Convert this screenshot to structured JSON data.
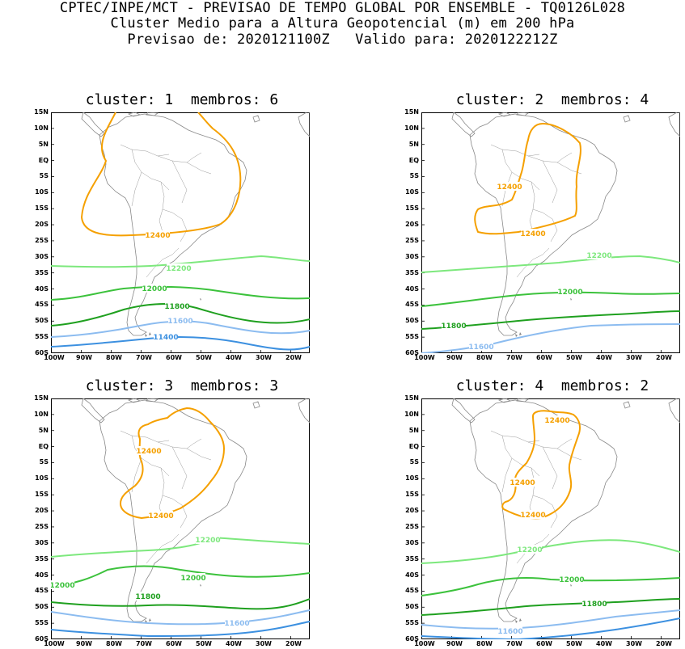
{
  "header": {
    "line1": "CPTEC/INPE/MCT - PREVISAO DE TEMPO GLOBAL POR ENSEMBLE - TQ0126L028",
    "line2": "Cluster Medio para a Altura Geopotencial (m) em 200 hPa",
    "line3": "Previsao de: 2020121100Z   Valido para: 2020122212Z"
  },
  "axes": {
    "lat_labels": [
      "15N",
      "10N",
      "5N",
      "EQ",
      "5S",
      "10S",
      "15S",
      "20S",
      "25S",
      "30S",
      "35S",
      "40S",
      "45S",
      "50S",
      "55S",
      "60S"
    ],
    "lon_labels": [
      "100W",
      "90W",
      "80W",
      "70W",
      "60W",
      "50W",
      "40W",
      "30W",
      "20W"
    ]
  },
  "colors": {
    "c12400": "#f5a000",
    "c12200": "#7de87d",
    "c12000": "#3cc23c",
    "c11800": "#1fa01f",
    "c11600": "#8cbcf0",
    "c11400": "#3c90e0",
    "land": "#888888"
  },
  "panels": [
    {
      "title": "cluster: 1  membros: 6",
      "labels": [
        "12400",
        "12200",
        "12000",
        "11800",
        "11600",
        "11400"
      ]
    },
    {
      "title": "cluster: 2  membros: 4",
      "labels": [
        "12400",
        "12400",
        "12200",
        "12000",
        "11800",
        "11600"
      ]
    },
    {
      "title": "cluster: 3  membros: 3",
      "labels": [
        "12400",
        "12400",
        "12200",
        "12000",
        "12000",
        "11800",
        "11600"
      ]
    },
    {
      "title": "cluster: 4  membros: 2",
      "labels": [
        "12400",
        "12400",
        "12400",
        "12200",
        "12000",
        "11800",
        "11600"
      ]
    }
  ]
}
